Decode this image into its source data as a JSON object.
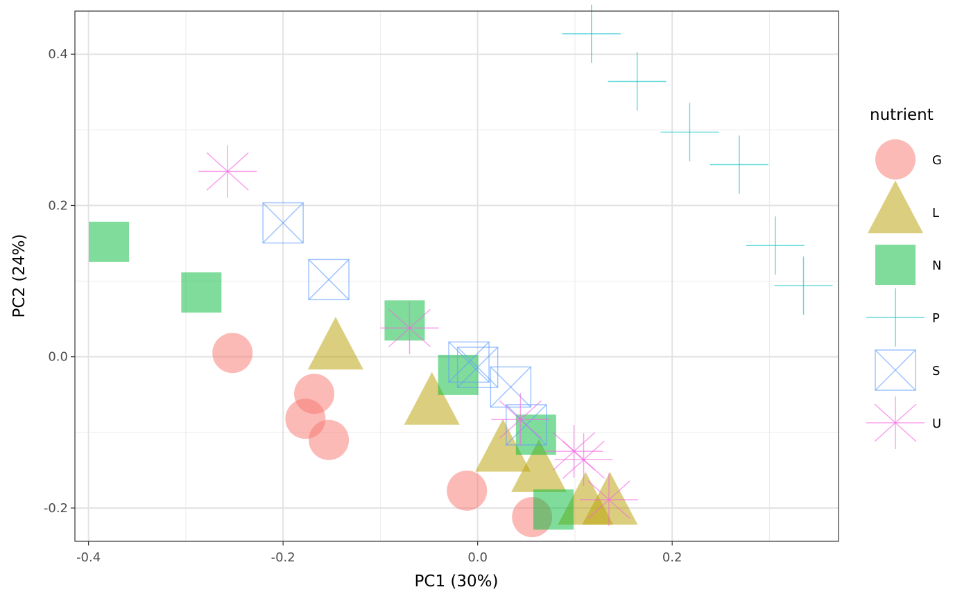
{
  "chart_data": {
    "type": "scatter",
    "title": "",
    "xlabel": "PC1 (30%)",
    "ylabel": "PC2 (24%)",
    "xlim": [
      -0.414,
      0.371
    ],
    "ylim": [
      -0.244,
      0.457
    ],
    "xticks": [
      -0.4,
      -0.2,
      0.0,
      0.2
    ],
    "xtick_labels": [
      "-0.4",
      "-0.2",
      "0.0",
      "0.2"
    ],
    "yticks": [
      -0.2,
      0.0,
      0.2,
      0.4
    ],
    "ytick_labels": [
      "-0.2",
      "0.0",
      "0.2",
      "0.4"
    ],
    "grid": true,
    "legend": {
      "title": "nutrient",
      "placement": "right"
    },
    "series": [
      {
        "name": "G",
        "shape": "circle",
        "color": "#F8766D",
        "points": [
          [
            -0.252,
            0.005
          ],
          [
            -0.168,
            -0.049
          ],
          [
            -0.177,
            -0.082
          ],
          [
            -0.153,
            -0.11
          ],
          [
            -0.011,
            -0.177
          ],
          [
            0.056,
            -0.212
          ]
        ]
      },
      {
        "name": "L",
        "shape": "triangle",
        "color": "#B79F00",
        "points": [
          [
            -0.146,
            0.011
          ],
          [
            -0.047,
            -0.062
          ],
          [
            0.026,
            -0.124
          ],
          [
            0.063,
            -0.151
          ],
          [
            0.111,
            -0.194
          ],
          [
            0.136,
            -0.194
          ]
        ]
      },
      {
        "name": "N",
        "shape": "square",
        "color": "#00BA38",
        "points": [
          [
            -0.379,
            0.152
          ],
          [
            -0.284,
            0.085
          ],
          [
            -0.075,
            0.048
          ],
          [
            -0.02,
            -0.024
          ],
          [
            0.06,
            -0.103
          ],
          [
            0.078,
            -0.202
          ]
        ]
      },
      {
        "name": "P",
        "shape": "plus",
        "color": "#00BFC4",
        "points": [
          [
            0.117,
            0.427
          ],
          [
            0.164,
            0.364
          ],
          [
            0.218,
            0.297
          ],
          [
            0.269,
            0.254
          ],
          [
            0.306,
            0.147
          ],
          [
            0.335,
            0.094
          ]
        ]
      },
      {
        "name": "S",
        "shape": "boxx",
        "color": "#619CFF",
        "points": [
          [
            -0.2,
            0.177
          ],
          [
            -0.153,
            0.102
          ],
          [
            -0.009,
            -0.007
          ],
          [
            0.0,
            -0.014
          ],
          [
            0.034,
            -0.04
          ],
          [
            0.05,
            -0.09
          ]
        ]
      },
      {
        "name": "U",
        "shape": "asterisk",
        "color": "#F564E3",
        "points": [
          [
            -0.257,
            0.245
          ],
          [
            -0.07,
            0.038
          ],
          [
            0.044,
            -0.083
          ],
          [
            0.099,
            -0.125
          ],
          [
            0.109,
            -0.136
          ],
          [
            0.135,
            -0.189
          ]
        ]
      }
    ]
  }
}
